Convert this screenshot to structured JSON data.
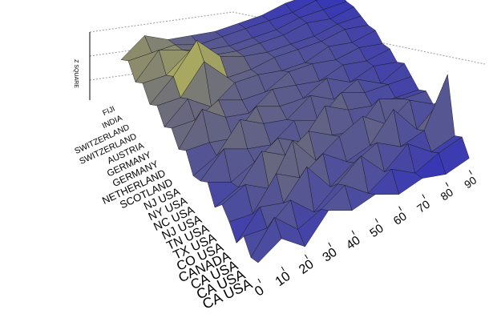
{
  "chart_data": {
    "type": "surface3d",
    "zlabel": "Z SQUARE",
    "categories": [
      "CA USA",
      "CA USA",
      "CA USA",
      "CANADA",
      "CO USA",
      "TX USA",
      "TN USA",
      "NJ USA",
      "NC USA",
      "NY USA",
      "NJ USA",
      "SCOTLAND",
      "NETHERLAND",
      "GERMANY",
      "GERMANY",
      "AUSTRIA",
      "SWITZERLAND",
      "SWITZERLAND",
      "INDIA",
      "FIJI"
    ],
    "x": [
      0,
      10,
      20,
      30,
      40,
      50,
      60,
      70,
      80,
      90
    ],
    "xlim": [
      0,
      95
    ],
    "xticks": [
      0,
      10,
      20,
      30,
      40,
      50,
      60,
      70,
      80,
      90
    ],
    "zlim": [
      0,
      100
    ],
    "z": [
      [
        20,
        35,
        10,
        40,
        25,
        30,
        15,
        20,
        10,
        15
      ],
      [
        15,
        50,
        20,
        30,
        45,
        20,
        35,
        15,
        25,
        30
      ],
      [
        30,
        25,
        45,
        15,
        35,
        55,
        20,
        40,
        15,
        20
      ],
      [
        10,
        40,
        30,
        60,
        20,
        35,
        45,
        25,
        30,
        85
      ],
      [
        25,
        20,
        55,
        35,
        50,
        25,
        30,
        60,
        20,
        40
      ],
      [
        35,
        45,
        25,
        70,
        30,
        45,
        55,
        30,
        45,
        25
      ],
      [
        20,
        30,
        60,
        40,
        55,
        35,
        25,
        50,
        35,
        30
      ],
      [
        40,
        25,
        35,
        50,
        30,
        60,
        40,
        30,
        25,
        20
      ],
      [
        30,
        55,
        40,
        30,
        45,
        30,
        50,
        35,
        30,
        25
      ],
      [
        25,
        35,
        65,
        45,
        35,
        50,
        30,
        40,
        20,
        30
      ],
      [
        45,
        40,
        30,
        55,
        40,
        35,
        45,
        25,
        30,
        20
      ],
      [
        35,
        70,
        45,
        35,
        50,
        40,
        30,
        35,
        25,
        25
      ],
      [
        50,
        45,
        55,
        40,
        35,
        45,
        40,
        30,
        30,
        20
      ],
      [
        40,
        60,
        35,
        50,
        45,
        35,
        30,
        35,
        25,
        25
      ],
      [
        55,
        50,
        80,
        45,
        40,
        40,
        35,
        30,
        30,
        20
      ],
      [
        45,
        65,
        95,
        60,
        45,
        35,
        30,
        25,
        25,
        20
      ],
      [
        60,
        55,
        70,
        50,
        40,
        35,
        30,
        30,
        20,
        20
      ],
      [
        50,
        75,
        60,
        45,
        35,
        30,
        25,
        25,
        20,
        15
      ],
      [
        65,
        60,
        55,
        40,
        35,
        30,
        25,
        20,
        20,
        15
      ],
      [
        55,
        70,
        50,
        40,
        30,
        25,
        20,
        20,
        15,
        15
      ]
    ]
  }
}
